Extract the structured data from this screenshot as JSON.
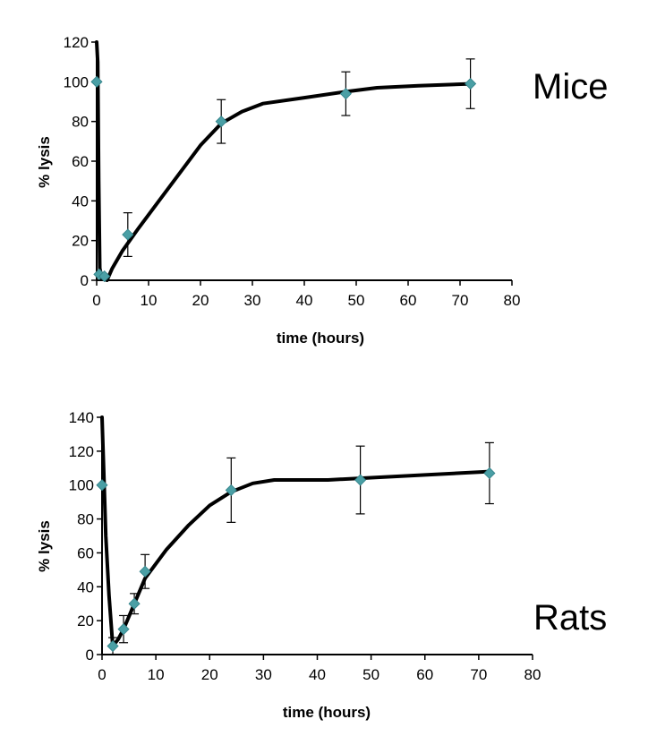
{
  "chart_data": [
    {
      "type": "line",
      "title": "Mice",
      "xlabel": "time (hours)",
      "ylabel": "% lysis",
      "xlim": [
        0,
        80
      ],
      "ylim": [
        0,
        120
      ],
      "xticks": [
        0,
        10,
        20,
        30,
        40,
        50,
        60,
        70,
        80
      ],
      "yticks": [
        0,
        20,
        40,
        60,
        80,
        100,
        120
      ],
      "series": [
        {
          "name": "Mice",
          "points": [
            {
              "x": 0,
              "y": 100,
              "err": null
            },
            {
              "x": 0.5,
              "y": 3,
              "err": null
            },
            {
              "x": 1.5,
              "y": 2,
              "err": null
            },
            {
              "x": 6,
              "y": 23,
              "err": 11
            },
            {
              "x": 24,
              "y": 80,
              "err": 11
            },
            {
              "x": 48,
              "y": 94,
              "err": 11
            },
            {
              "x": 72,
              "y": 99,
              "err": 12.5
            }
          ],
          "curve": [
            [
              0,
              120
            ],
            [
              0.2,
              110
            ],
            [
              0.4,
              50
            ],
            [
              0.6,
              6
            ],
            [
              1,
              1
            ],
            [
              2,
              0
            ],
            [
              3,
              6
            ],
            [
              5,
              15
            ],
            [
              8,
              26
            ],
            [
              12,
              40
            ],
            [
              16,
              54
            ],
            [
              20,
              68
            ],
            [
              24,
              79
            ],
            [
              28,
              85
            ],
            [
              32,
              89
            ],
            [
              40,
              92
            ],
            [
              48,
              95
            ],
            [
              54,
              97
            ],
            [
              62,
              98
            ],
            [
              72,
              99
            ]
          ]
        }
      ]
    },
    {
      "type": "line",
      "title": "Rats",
      "xlabel": "time (hours)",
      "ylabel": "% lysis",
      "xlim": [
        0,
        80
      ],
      "ylim": [
        0,
        140
      ],
      "xticks": [
        0,
        10,
        20,
        30,
        40,
        50,
        60,
        70,
        80
      ],
      "yticks": [
        0,
        20,
        40,
        60,
        80,
        100,
        120,
        140
      ],
      "series": [
        {
          "name": "Rats",
          "points": [
            {
              "x": 0,
              "y": 100,
              "err": null
            },
            {
              "x": 2,
              "y": 5,
              "err": 5
            },
            {
              "x": 4,
              "y": 15,
              "err": 8
            },
            {
              "x": 6,
              "y": 30,
              "err": 6
            },
            {
              "x": 8,
              "y": 49,
              "err": 10
            },
            {
              "x": 24,
              "y": 97,
              "err": 19
            },
            {
              "x": 48,
              "y": 103,
              "err": 20
            },
            {
              "x": 72,
              "y": 107,
              "err": 18
            }
          ],
          "curve": [
            [
              0,
              140
            ],
            [
              0.3,
              110
            ],
            [
              0.7,
              70
            ],
            [
              1.3,
              35
            ],
            [
              2,
              5
            ],
            [
              3,
              9
            ],
            [
              4,
              15
            ],
            [
              6,
              30
            ],
            [
              8,
              45
            ],
            [
              12,
              62
            ],
            [
              16,
              76
            ],
            [
              20,
              88
            ],
            [
              24,
              96
            ],
            [
              28,
              101
            ],
            [
              32,
              103
            ],
            [
              42,
              103
            ],
            [
              48,
              104
            ],
            [
              60,
              106
            ],
            [
              72,
              108
            ]
          ]
        }
      ]
    }
  ]
}
